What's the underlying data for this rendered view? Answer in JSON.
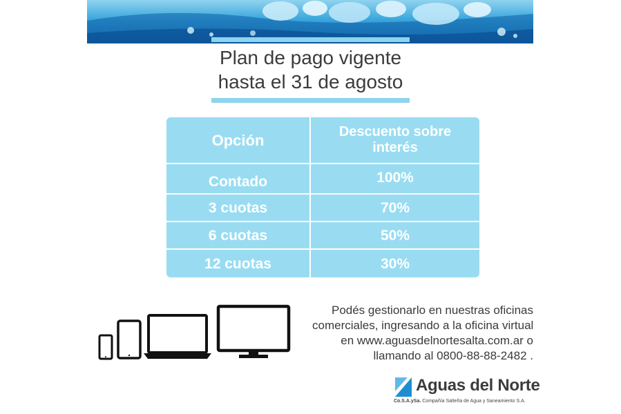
{
  "header": {
    "title_line1": "Plan de pago vigente",
    "title_line2": "hasta el 31 de agosto"
  },
  "table": {
    "headers": {
      "option": "Opción",
      "discount_line1": "Descuento sobre",
      "discount_line2": "interés"
    },
    "rows": [
      {
        "option": "Contado",
        "discount": "100%"
      },
      {
        "option": "3 cuotas",
        "discount": "70%"
      },
      {
        "option": "6 cuotas",
        "discount": "50%"
      },
      {
        "option": "12 cuotas",
        "discount": "30%"
      }
    ]
  },
  "info": {
    "line1": "Podés gestionarlo en nuestras oficinas",
    "line2": "comerciales, ingresando a la oficina virtual",
    "line3": "en www.aguasdelnortesalta.com.ar o",
    "line4": "llamando al 0800-88-88-2482 ."
  },
  "devices": [
    "smartphone-icon",
    "tablet-icon",
    "laptop-icon",
    "monitor-icon"
  ],
  "logo": {
    "name": "Aguas del Norte",
    "abbrev": "Co.S.A.ySa.",
    "full_name": "Compañía Salteña de Agua y Saneamiento S.A."
  },
  "colors": {
    "table_bg": "#99dcf2",
    "title_bar": "#8dd4ee",
    "brand_blue": "#1d8fd0",
    "text_dark": "#3b3b3b"
  }
}
